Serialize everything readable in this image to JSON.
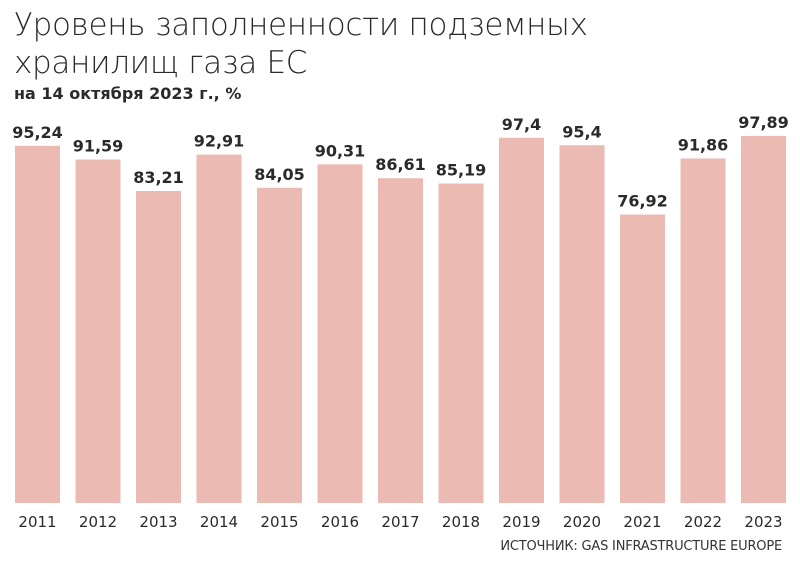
{
  "colors": {
    "bar": "#ebbab2",
    "text": "#2a2a2a"
  },
  "chart_data": {
    "type": "bar",
    "title": "Уровень заполненности подземных хранилищ газа ЕС",
    "subtitle": "на 14 октября 2023 г., %",
    "categories": [
      "2011",
      "2012",
      "2013",
      "2014",
      "2015",
      "2016",
      "2017",
      "2018",
      "2019",
      "2020",
      "2021",
      "2022",
      "2023"
    ],
    "values": [
      95.24,
      91.59,
      83.21,
      92.91,
      84.05,
      90.31,
      86.61,
      85.19,
      97.4,
      95.4,
      76.92,
      91.86,
      97.89
    ],
    "value_labels": [
      "95,24",
      "91,59",
      "83,21",
      "92,91",
      "84,05",
      "90,31",
      "86,61",
      "85,19",
      "97,4",
      "95,4",
      "76,92",
      "91,86",
      "97,89"
    ],
    "ylim": [
      0,
      100
    ],
    "grid": false,
    "source": "ИСТОЧНИК: GAS INFRASTRUCTURE EUROPE"
  }
}
